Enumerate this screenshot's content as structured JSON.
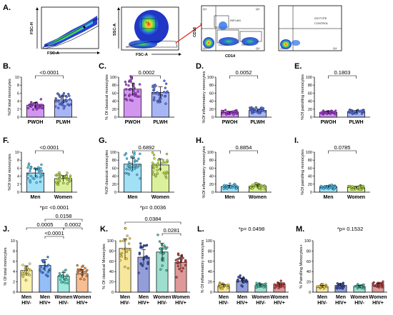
{
  "figure_labels": [
    "A.",
    "B.",
    "C.",
    "D.",
    "E.",
    "F.",
    "G.",
    "H.",
    "I.",
    "J.",
    "K.",
    "L.",
    "M."
  ],
  "flow": {
    "p1_x": "FSC-A",
    "p1_y": "FSC-H",
    "p2_x": "FSC-A",
    "p2_y": "SSC-A",
    "p3_x": "CD14",
    "p3_y": "CD16",
    "isotype_l1": "ISOTYPE",
    "isotype_l2": "CONTROL",
    "gate_labels": [
      "Q1",
      "Q2",
      "Q3",
      "Q4",
      "INFLAM",
      "CLASS",
      "PATR",
      "Q3",
      "Q4"
    ]
  },
  "chart_data": [
    {
      "id": "B",
      "type": "bar",
      "categories": [
        "PWOH",
        "PLWH"
      ],
      "values": [
        3.0,
        4.3
      ],
      "ylabel": "%Of total monocytes",
      "ylim": [
        0,
        10
      ],
      "yticks": [
        0,
        2,
        4,
        6,
        8,
        10
      ],
      "pvalue": "<0.0001",
      "colors": [
        "#ad3fe0",
        "#5e78ec"
      ]
    },
    {
      "id": "C",
      "type": "bar",
      "categories": [
        "PWOH",
        "PLWH"
      ],
      "values": [
        70,
        62
      ],
      "ylabel": "% Of classical monocytes",
      "ylim": [
        0,
        100
      ],
      "yticks": [
        0,
        20,
        40,
        60,
        80,
        100
      ],
      "pvalue": "0.0002",
      "colors": [
        "#ad3fe0",
        "#5e78ec"
      ]
    },
    {
      "id": "D",
      "type": "bar",
      "categories": [
        "PWOH",
        "PLWH"
      ],
      "values": [
        12,
        17
      ],
      "ylabel": "%Of inflammatory monocytes",
      "ylim": [
        0,
        100
      ],
      "yticks": [
        0,
        20,
        40,
        60,
        80,
        100
      ],
      "pvalue": "0.0052",
      "colors": [
        "#ad3fe0",
        "#5e78ec"
      ]
    },
    {
      "id": "E",
      "type": "bar",
      "categories": [
        "PWOH",
        "PLWH"
      ],
      "values": [
        12,
        14
      ],
      "ylabel": "%Of patrolling monocytes",
      "ylim": [
        0,
        100
      ],
      "yticks": [
        0,
        20,
        40,
        60,
        80,
        100
      ],
      "pvalue": "0.1803",
      "colors": [
        "#ad3fe0",
        "#5e78ec"
      ]
    },
    {
      "id": "F",
      "type": "bar",
      "categories": [
        "Men",
        "Women"
      ],
      "values": [
        4.8,
        3.4
      ],
      "ylabel": "%Of total monocytes",
      "ylim": [
        0,
        10
      ],
      "yticks": [
        0,
        2,
        4,
        6,
        8,
        10
      ],
      "pvalue": "<0.0001",
      "colors": [
        "#56c6ee",
        "#bde44a"
      ]
    },
    {
      "id": "G",
      "type": "bar",
      "categories": [
        "Men",
        "Women"
      ],
      "values": [
        70,
        68
      ],
      "ylabel": "%Of classical monocytes",
      "ylim": [
        0,
        100
      ],
      "yticks": [
        0,
        20,
        40,
        60,
        80,
        100
      ],
      "pvalue": "0.6892",
      "colors": [
        "#56c6ee",
        "#bde44a"
      ]
    },
    {
      "id": "H",
      "type": "bar",
      "categories": [
        "Men",
        "Women"
      ],
      "values": [
        14,
        15
      ],
      "ylabel": "%Of inflammatory monocytes",
      "ylim": [
        0,
        100
      ],
      "yticks": [
        0,
        20,
        40,
        60,
        80,
        100
      ],
      "pvalue": "0.8854",
      "colors": [
        "#56c6ee",
        "#bde44a"
      ]
    },
    {
      "id": "I",
      "type": "bar",
      "categories": [
        "Men",
        "Women"
      ],
      "values": [
        13,
        12
      ],
      "ylabel": "%Of patrolling monocytes",
      "ylim": [
        0,
        100
      ],
      "yticks": [
        0,
        20,
        40,
        60,
        80,
        100
      ],
      "pvalue": "0.0785",
      "colors": [
        "#56c6ee",
        "#bde44a"
      ]
    },
    {
      "id": "J",
      "type": "bar",
      "categories": [
        "Men HIV-",
        "Men HIV+",
        "Women HIV-",
        "Women HIV+"
      ],
      "values": [
        4.2,
        5.2,
        3.1,
        3.6
      ],
      "ylabel": "% Of total monocytes",
      "ylim": [
        0,
        10
      ],
      "yticks": [
        0,
        2,
        4,
        6,
        8,
        10
      ],
      "pvalue": "*p= <0.0001",
      "comparisons": [
        {
          "a": 1,
          "b": 2,
          "label": "<0.0001"
        },
        {
          "a": 0,
          "b": 2,
          "label": "0.0005"
        },
        {
          "a": 2,
          "b": 3,
          "label": "0.0002"
        },
        {
          "a": 1,
          "b": 3,
          "label": "0.0158"
        }
      ],
      "colors": [
        "#f5e76b",
        "#3e86f0",
        "#4fd6c0",
        "#f0893b"
      ]
    },
    {
      "id": "K",
      "type": "bar",
      "categories": [
        "Men HIV-",
        "Men HIV+",
        "Women HIV-",
        "Women HIV+"
      ],
      "values": [
        85,
        68,
        78,
        58
      ],
      "ylabel": "% Of classical Monocytes",
      "ylim": [
        0,
        100
      ],
      "yticks": [
        0,
        20,
        40,
        60,
        80,
        100
      ],
      "pvalue": "*p= 0.0036",
      "comparisons": [
        {
          "a": 2,
          "b": 3,
          "label": "0.0281"
        },
        {
          "a": 0,
          "b": 3,
          "label": "0.0384"
        }
      ],
      "colors": [
        "#f0d34c",
        "#3a4fb8",
        "#4ec2a8",
        "#c44545"
      ]
    },
    {
      "id": "L",
      "type": "bar",
      "categories": [
        "Men HIV-",
        "Men HIV+",
        "Women HIV-",
        "Women HIV+"
      ],
      "values": [
        12,
        22,
        13,
        15
      ],
      "ylabel": "% Of inflammatory monocytes",
      "ylim": [
        0,
        100
      ],
      "yticks": [
        0,
        20,
        40,
        60,
        80,
        100
      ],
      "pvalue": "*p= 0.0498",
      "colors": [
        "#f0d34c",
        "#3a4fb8",
        "#4ec2a8",
        "#c44545"
      ]
    },
    {
      "id": "M",
      "type": "bar",
      "categories": [
        "Men HIV-",
        "Men HIV+",
        "Women HIV-",
        "Women HIV+"
      ],
      "values": [
        11,
        13,
        11,
        14
      ],
      "ylabel": "% Patrolling Monocytes+",
      "ylim": [
        0,
        100
      ],
      "yticks": [
        0,
        20,
        40,
        60,
        80,
        100
      ],
      "pvalue": "*p= 0.1532",
      "colors": [
        "#f0d34c",
        "#3a4fb8",
        "#4ec2a8",
        "#c44545"
      ]
    }
  ]
}
